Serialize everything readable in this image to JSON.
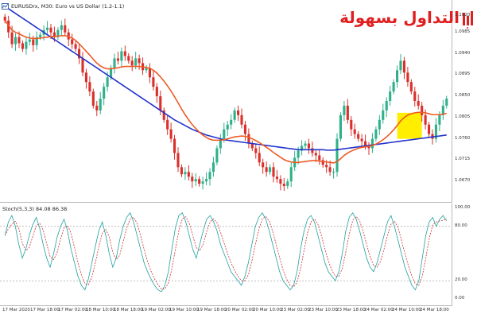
{
  "chart_title": "EURUSDrx, M30: Euro vs US Dollar (1.2-1.1)",
  "stoch_title": "Stoch(5,3,3) 84.08 86.38",
  "logo_text": "التداول بسهولة",
  "price_axis_labels": [
    "1.1020",
    "1.0985",
    "1.0940",
    "1.0895",
    "1.0850",
    "1.0805",
    "1.0760",
    "1.0715",
    "1.0670"
  ],
  "stoch_axis_labels": [
    "100.00",
    "80.00",
    "20.00",
    "0.00"
  ],
  "time_labels": [
    "17 Mar 2020",
    "17 Mar 18:00",
    "17 Mar 02:00",
    "18 Mar 10:00",
    "18 Mar 18:00",
    "19 Mar 02:00",
    "19 Mar 10:00",
    "19 Mar 18:00",
    "20 Mar 02:00",
    "20 Mar 10:00",
    "23 Mar 02:00",
    "23 Mar 10:00",
    "23 Mar 18:00",
    "24 Mar 02:00",
    "24 Mar 10:00",
    "24 Mar 18:00"
  ],
  "colors": {
    "bull_candle": "#2fb08a",
    "bear_candle": "#d9302c",
    "ma_fast": "#ee5a24",
    "ma_slow": "#2233cc",
    "highlight": "#ffee00",
    "stoch_main": "#20a0a0",
    "stoch_signal": "#d03030",
    "logo": "#e02020"
  },
  "icons": {
    "chart_icon": "chart-window-icon",
    "logo_icon": "logo-mark-icon"
  },
  "chart_data": {
    "type": "candlestick",
    "title": "EURUSDrx, M30: Euro vs US Dollar (1.2-1.1)",
    "y_range": [
      1.064,
      1.104
    ],
    "price_ticks": [
      1.102,
      1.0985,
      1.094,
      1.0895,
      1.085,
      1.0805,
      1.076,
      1.0715,
      1.067
    ],
    "close_series": [
      1.101,
      1.0985,
      1.096,
      1.0975,
      1.0962,
      1.095,
      1.0965,
      1.097,
      1.0958,
      1.0975,
      1.098,
      1.099,
      1.0995,
      1.0985,
      1.0975,
      1.099,
      1.1,
      1.0985,
      1.097,
      1.096,
      1.095,
      1.093,
      1.09,
      1.088,
      1.086,
      1.083,
      1.082,
      1.0845,
      1.087,
      1.089,
      1.091,
      1.093,
      1.0925,
      1.0945,
      1.0935,
      1.0925,
      1.0915,
      1.093,
      1.092,
      1.0905,
      1.091,
      1.089,
      1.087,
      1.085,
      1.082,
      1.08,
      1.078,
      1.076,
      1.073,
      1.07,
      1.0685,
      1.069,
      1.068,
      1.067,
      1.0675,
      1.0665,
      1.067,
      1.0675,
      1.069,
      1.071,
      1.074,
      1.076,
      1.078,
      1.079,
      1.08,
      1.082,
      1.081,
      1.079,
      1.077,
      1.075,
      1.074,
      1.073,
      1.071,
      1.07,
      1.069,
      1.07,
      1.068,
      1.0675,
      1.0665,
      1.066,
      1.067,
      1.07,
      1.072,
      1.0735,
      1.0745,
      1.075,
      1.074,
      1.073,
      1.0725,
      1.0715,
      1.0705,
      1.07,
      1.069,
      1.069,
      1.076,
      1.081,
      1.083,
      1.08,
      1.078,
      1.077,
      1.076,
      1.0755,
      1.0745,
      1.074,
      1.076,
      1.078,
      1.08,
      1.082,
      1.084,
      1.086,
      1.088,
      1.0905,
      1.0925,
      1.09,
      1.088,
      1.086,
      1.084,
      1.083,
      1.081,
      1.079,
      1.077,
      1.076,
      1.079,
      1.081,
      1.083,
      1.0845
    ],
    "ma_fast_values": [
      1.101,
      1.1,
      1.099,
      1.0985,
      1.0982,
      1.0978,
      1.0975,
      1.0973,
      1.0972,
      1.0972,
      1.0973,
      1.0974,
      1.0975,
      1.0976,
      1.0976,
      1.0977,
      1.0978,
      1.0978,
      1.0976,
      1.0973,
      1.0968,
      1.0961,
      1.0953,
      1.0945,
      1.0937,
      1.0928,
      1.092,
      1.0914,
      1.091,
      1.0908,
      1.0908,
      1.0909,
      1.091,
      1.0912,
      1.0913,
      1.0913,
      1.0913,
      1.0913,
      1.0913,
      1.0912,
      1.0911,
      1.0909,
      1.0905,
      1.0899,
      1.0891,
      1.0882,
      1.0872,
      1.0861,
      1.0849,
      1.0836,
      1.0823,
      1.0811,
      1.08,
      1.079,
      1.0782,
      1.0774,
      1.0768,
      1.0763,
      1.0759,
      1.0757,
      1.0757,
      1.0757,
      1.0758,
      1.076,
      1.0762,
      1.0764,
      1.0765,
      1.0766,
      1.0765,
      1.0763,
      1.076,
      1.0756,
      1.0752,
      1.0747,
      1.0742,
      1.0737,
      1.0731,
      1.0726,
      1.0721,
      1.0716,
      1.0713,
      1.0711,
      1.071,
      1.071,
      1.0711,
      1.0712,
      1.0713,
      1.0714,
      1.0714,
      1.0713,
      1.0712,
      1.0711,
      1.071,
      1.0709,
      1.0712,
      1.0718,
      1.0725,
      1.073,
      1.0734,
      1.0737,
      1.074,
      1.0742,
      1.0743,
      1.0744,
      1.0746,
      1.0749,
      1.0753,
      1.0758,
      1.0764,
      1.0771,
      1.0779,
      1.0788,
      1.0798,
      1.0805,
      1.081,
      1.0813,
      1.0815,
      1.0816,
      1.0816,
      1.0815,
      1.0813,
      1.0811,
      1.0811,
      1.0811,
      1.0812,
      1.0814
    ],
    "ma_slow_values": [
      1.104,
      1.1035,
      1.103,
      1.1025,
      1.102,
      1.1015,
      1.101,
      1.1005,
      1.1,
      1.0995,
      1.099,
      1.0985,
      1.098,
      1.0975,
      1.097,
      1.0965,
      1.096,
      1.0955,
      1.095,
      1.0945,
      1.094,
      1.0935,
      1.093,
      1.0925,
      1.092,
      1.0915,
      1.091,
      1.0905,
      1.09,
      1.0895,
      1.089,
      1.0885,
      1.088,
      1.0875,
      1.087,
      1.0865,
      1.086,
      1.0855,
      1.085,
      1.0845,
      1.084,
      1.0835,
      1.083,
      1.0825,
      1.082,
      1.0815,
      1.081,
      1.0805,
      1.08,
      1.0796,
      1.0792,
      1.0788,
      1.0784,
      1.078,
      1.0777,
      1.0774,
      1.0771,
      1.0768,
      1.0766,
      1.0764,
      1.0762,
      1.076,
      1.0758,
      1.0757,
      1.0756,
      1.0755,
      1.0754,
      1.0753,
      1.0752,
      1.0751,
      1.075,
      1.0749,
      1.0748,
      1.0747,
      1.0746,
      1.0745,
      1.0744,
      1.0743,
      1.0742,
      1.0741,
      1.074,
      1.0739,
      1.0738,
      1.0737,
      1.0737,
      1.0737,
      1.0737,
      1.0737,
      1.0737,
      1.0737,
      1.0737,
      1.0736,
      1.0736,
      1.0736,
      1.0737,
      1.0738,
      1.0739,
      1.074,
      1.0741,
      1.0742,
      1.0743,
      1.0744,
      1.0745,
      1.0746,
      1.0747,
      1.0748,
      1.0749,
      1.075,
      1.0751,
      1.0752,
      1.0753,
      1.0754,
      1.0755,
      1.0756,
      1.0757,
      1.0758,
      1.0759,
      1.076,
      1.0761,
      1.0762,
      1.0763,
      1.0764,
      1.0765,
      1.0766,
      1.0767,
      1.0768
    ],
    "highlight_zone": {
      "x_from_index": 111,
      "x_to_index": 118,
      "y_from": 1.076,
      "y_to": 1.0815
    },
    "stoch_levels": [
      80,
      20
    ],
    "stoch_range": [
      0,
      100
    ],
    "stoch_main_values": [
      70,
      85,
      92,
      80,
      60,
      45,
      55,
      70,
      82,
      90,
      78,
      60,
      45,
      35,
      50,
      68,
      80,
      88,
      75,
      55,
      40,
      25,
      15,
      10,
      22,
      40,
      58,
      75,
      85,
      70,
      50,
      35,
      45,
      65,
      80,
      90,
      95,
      85,
      70,
      55,
      40,
      30,
      22,
      15,
      10,
      8,
      15,
      30,
      55,
      78,
      92,
      95,
      85,
      70,
      55,
      45,
      60,
      75,
      88,
      92,
      85,
      75,
      60,
      50,
      40,
      30,
      25,
      20,
      15,
      25,
      40,
      60,
      80,
      90,
      95,
      88,
      75,
      60,
      45,
      30,
      20,
      15,
      10,
      15,
      30,
      55,
      75,
      88,
      92,
      85,
      70,
      55,
      40,
      30,
      25,
      20,
      30,
      50,
      75,
      90,
      95,
      88,
      75,
      60,
      45,
      35,
      30,
      40,
      55,
      70,
      85,
      92,
      80,
      65,
      50,
      35,
      25,
      15,
      10,
      20,
      45,
      70,
      85,
      90,
      80,
      88,
      92,
      86
    ]
  }
}
